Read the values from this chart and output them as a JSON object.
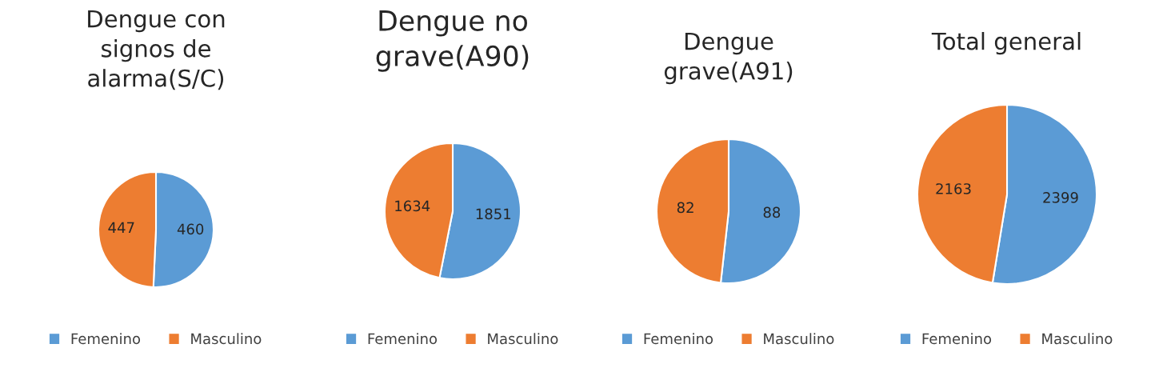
{
  "chart_data": [
    {
      "type": "pie",
      "title": "Dengue con\nsignos de\nalarma(S/C)",
      "categories": [
        "Femenino",
        "Masculino"
      ],
      "values": [
        460,
        447
      ],
      "colors": [
        "#5b9bd5",
        "#ed7d31"
      ],
      "data_labels": true,
      "legend": "bottom"
    },
    {
      "type": "pie",
      "title": "Dengue no\ngrave(A90)",
      "categories": [
        "Femenino",
        "Masculino"
      ],
      "values": [
        1851,
        1634
      ],
      "colors": [
        "#5b9bd5",
        "#ed7d31"
      ],
      "data_labels": true,
      "legend": "bottom"
    },
    {
      "type": "pie",
      "title": "Dengue\ngrave(A91)",
      "categories": [
        "Femenino",
        "Masculino"
      ],
      "values": [
        88,
        82
      ],
      "colors": [
        "#5b9bd5",
        "#ed7d31"
      ],
      "data_labels": true,
      "legend": "bottom"
    },
    {
      "type": "pie",
      "title": "Total general",
      "categories": [
        "Femenino",
        "Masculino"
      ],
      "values": [
        2399,
        2163
      ],
      "colors": [
        "#5b9bd5",
        "#ed7d31"
      ],
      "data_labels": true,
      "legend": "bottom"
    }
  ]
}
